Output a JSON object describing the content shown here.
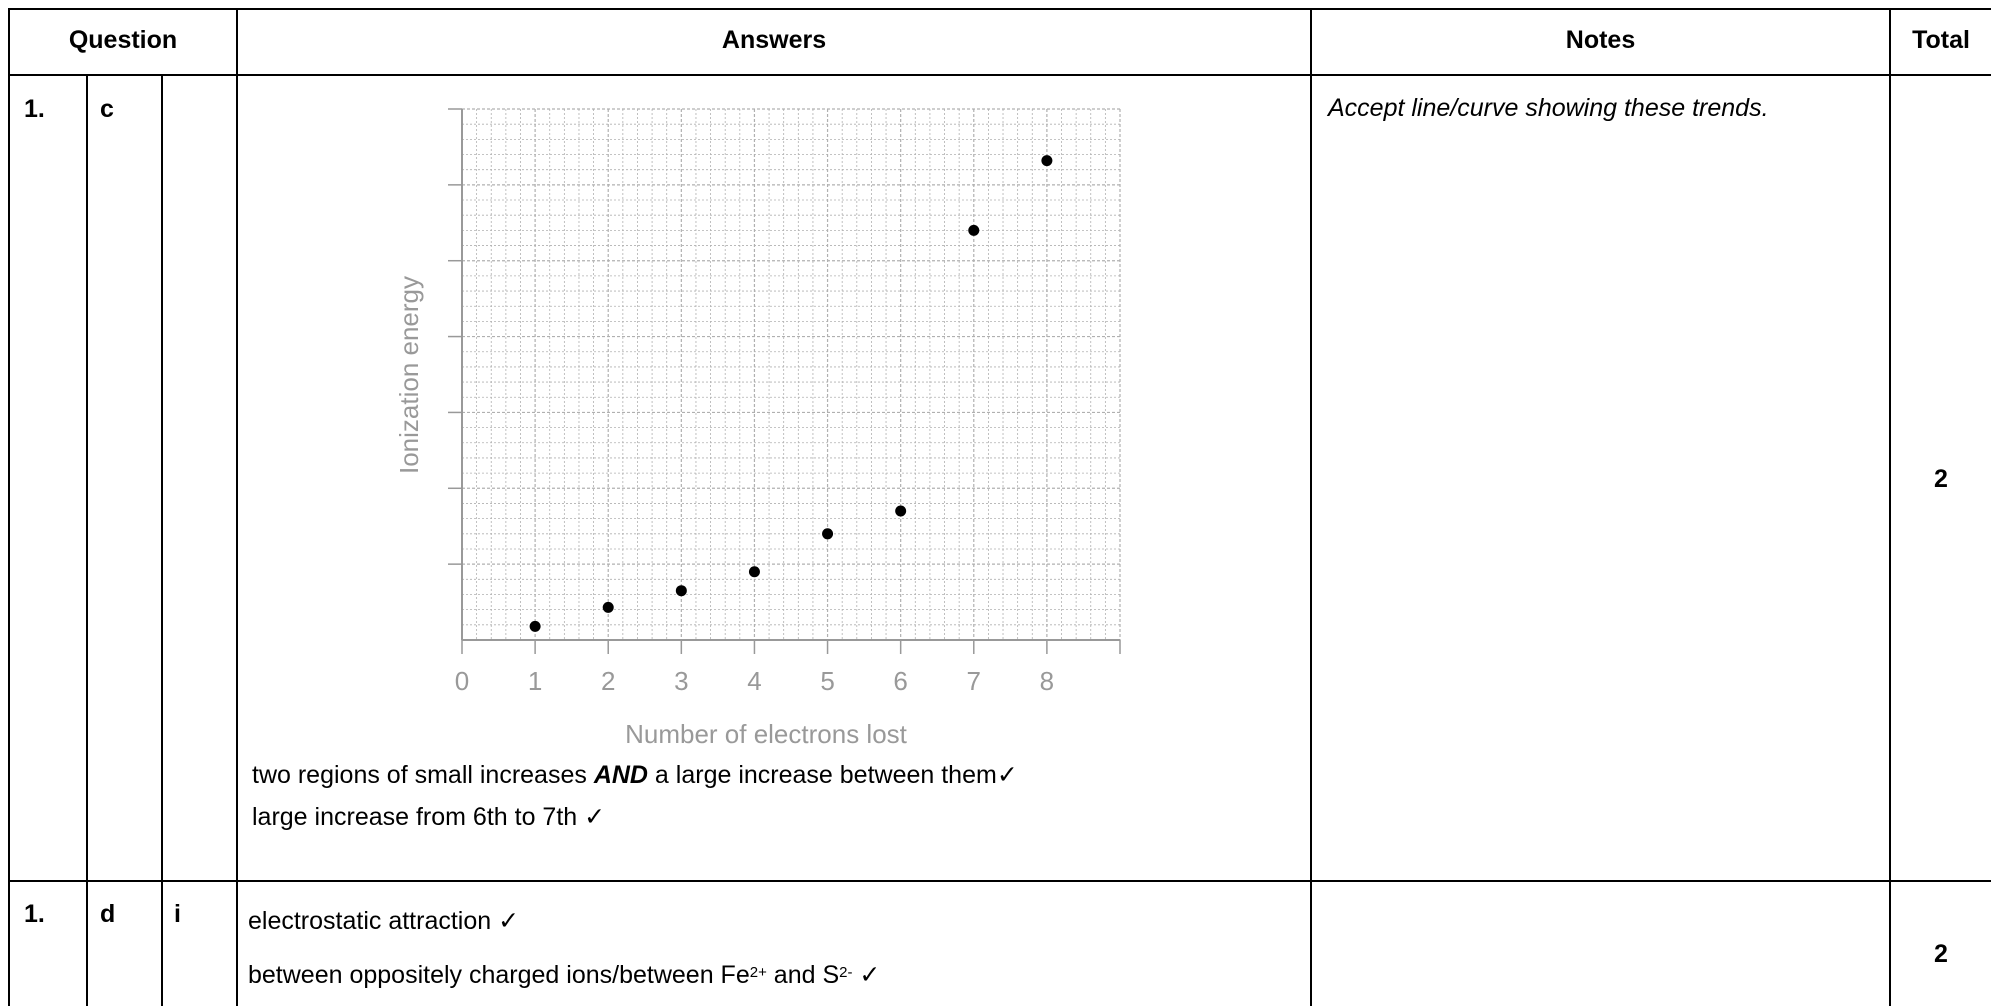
{
  "headers": {
    "question": "Question",
    "answers": "Answers",
    "notes": "Notes",
    "total": "Total"
  },
  "rows": [
    {
      "q_num": "1.",
      "q_part": "c",
      "q_sub": "",
      "answer_line1_a": "two regions of small increases ",
      "answer_line1_b": "AND",
      "answer_line1_c": " a large increase between them",
      "answer_line2": "large increase from 6th to 7th ",
      "tick": "✓",
      "notes": "Accept line/curve showing these trends.",
      "total": "2"
    },
    {
      "q_num": "1.",
      "q_part": "d",
      "q_sub": "i",
      "answer_line1": "electrostatic attraction ",
      "answer_line2_a": "between oppositely charged ions/between Fe",
      "answer_line2_sup1": "2+",
      "answer_line2_b": " and S",
      "answer_line2_sup2": "2-",
      "tick": "✓",
      "notes": "",
      "total": "2"
    }
  ],
  "chart_data": {
    "type": "scatter",
    "xlabel": "Number of electrons lost",
    "ylabel": "Ionization energy",
    "x_ticks": [
      "0",
      "1",
      "2",
      "3",
      "4",
      "5",
      "6",
      "7",
      "8"
    ],
    "xlim": [
      0,
      9
    ],
    "ylim": [
      0,
      7
    ],
    "grid": true,
    "colors": {
      "axis": "#999999",
      "grid": "#b0b0b0",
      "points": "#000000"
    },
    "points": [
      {
        "x": 1,
        "y": 0.18
      },
      {
        "x": 2,
        "y": 0.43
      },
      {
        "x": 3,
        "y": 0.65
      },
      {
        "x": 4,
        "y": 0.9
      },
      {
        "x": 5,
        "y": 1.4
      },
      {
        "x": 6,
        "y": 1.7
      },
      {
        "x": 7,
        "y": 5.4
      },
      {
        "x": 8,
        "y": 6.32
      }
    ]
  }
}
